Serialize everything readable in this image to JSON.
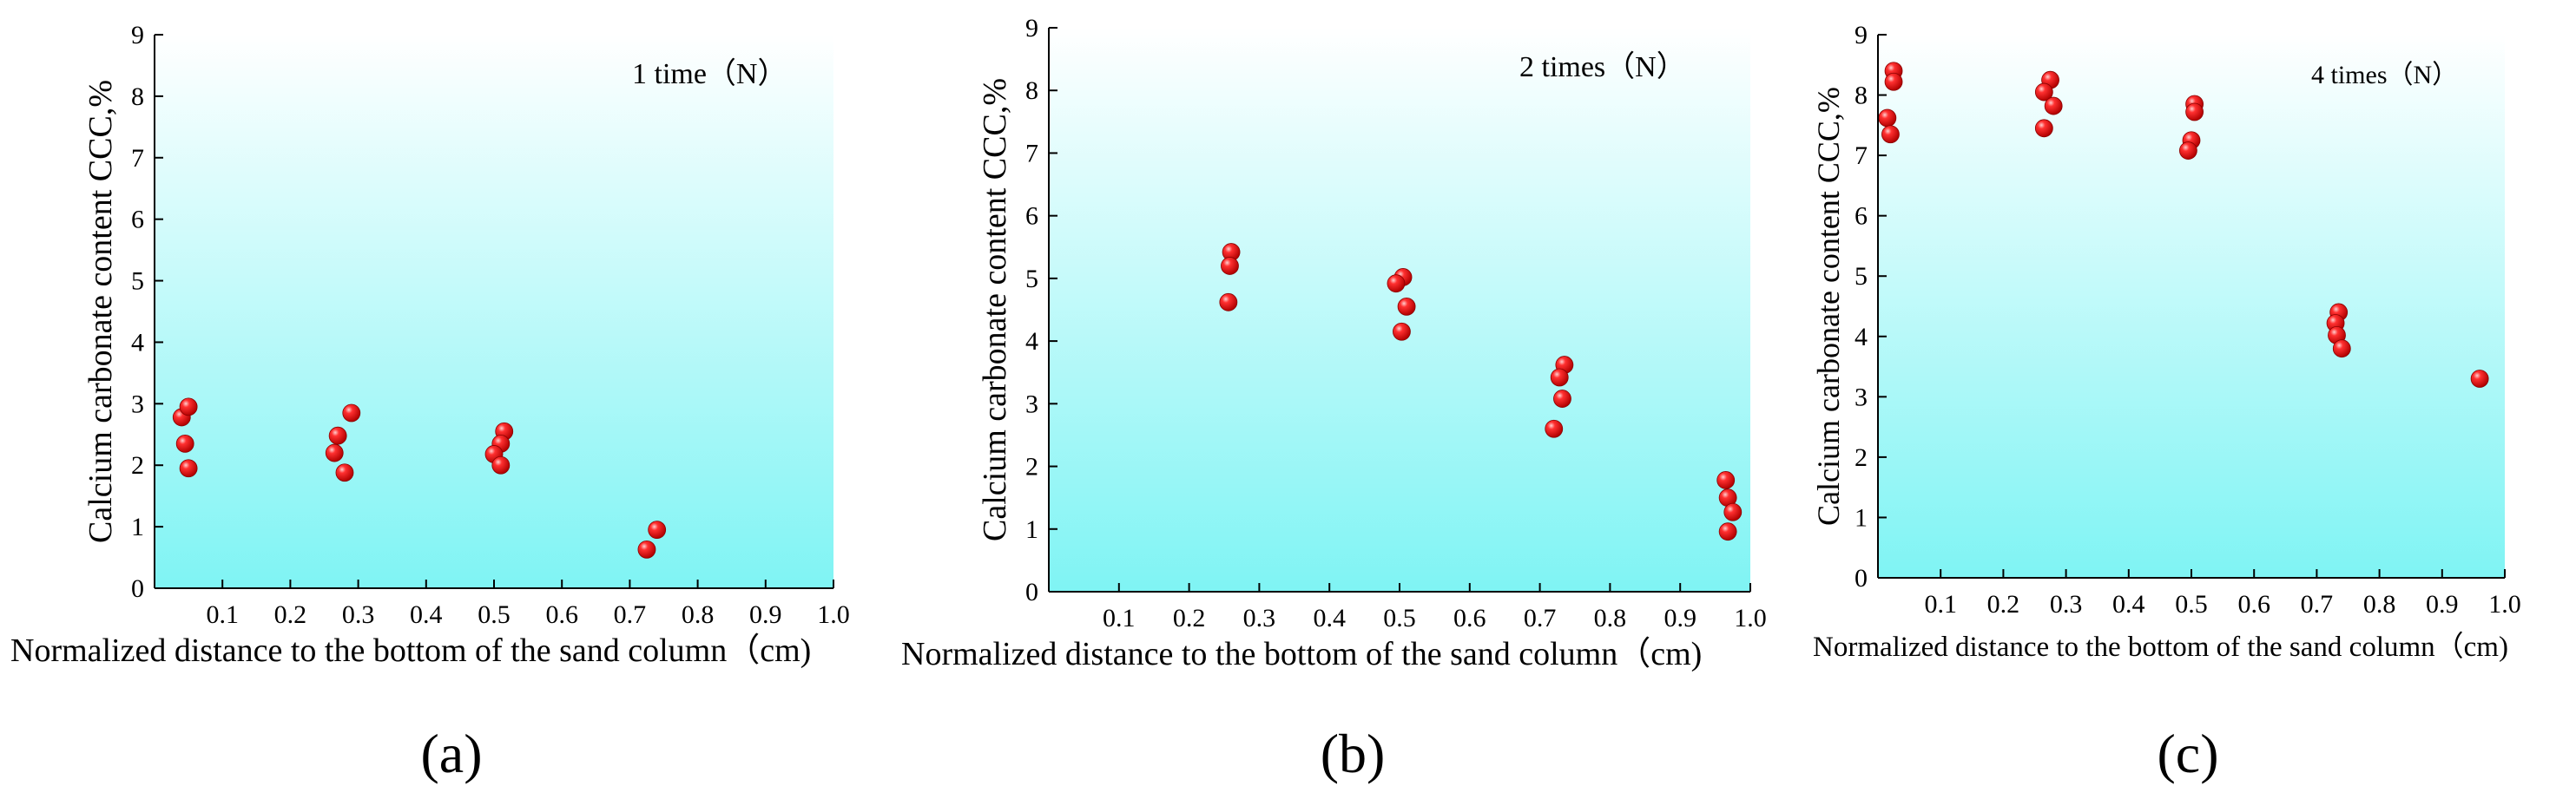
{
  "figure": {
    "captions": [
      "(a)",
      "(b)",
      "(c)"
    ]
  },
  "chart_data": [
    {
      "type": "scatter",
      "title": "1 time（N）",
      "xlabel": "Normalized distance to the bottom of the sand column（cm)",
      "ylabel": "Calcium carbonate content CCC,%",
      "xlim": [
        0,
        1.0
      ],
      "ylim": [
        0,
        9
      ],
      "xticks": [
        "0.1",
        "0.2",
        "0.3",
        "0.4",
        "0.5",
        "0.6",
        "0.7",
        "0.8",
        "0.9",
        "1.0"
      ],
      "yticks": [
        "0",
        "1",
        "2",
        "3",
        "4",
        "5",
        "6",
        "7",
        "8",
        "9"
      ],
      "points": [
        {
          "x": 0.04,
          "y": 2.78
        },
        {
          "x": 0.05,
          "y": 2.95
        },
        {
          "x": 0.045,
          "y": 2.35
        },
        {
          "x": 0.05,
          "y": 1.95
        },
        {
          "x": 0.27,
          "y": 2.48
        },
        {
          "x": 0.29,
          "y": 2.85
        },
        {
          "x": 0.265,
          "y": 2.2
        },
        {
          "x": 0.28,
          "y": 1.88
        },
        {
          "x": 0.515,
          "y": 2.55
        },
        {
          "x": 0.51,
          "y": 2.35
        },
        {
          "x": 0.5,
          "y": 2.18
        },
        {
          "x": 0.51,
          "y": 2.0
        },
        {
          "x": 0.74,
          "y": 0.95
        },
        {
          "x": 0.725,
          "y": 0.63
        }
      ]
    },
    {
      "type": "scatter",
      "title": "2 times（N）",
      "xlabel": "Normalized distance to the bottom of the sand column（cm)",
      "ylabel": "Calcium carbonate content CCC,%",
      "xlim": [
        0,
        1.0
      ],
      "ylim": [
        0,
        9
      ],
      "xticks": [
        "0.1",
        "0.2",
        "0.3",
        "0.4",
        "0.5",
        "0.6",
        "0.7",
        "0.8",
        "0.9",
        "1.0"
      ],
      "yticks": [
        "0",
        "1",
        "2",
        "3",
        "4",
        "5",
        "6",
        "7",
        "8",
        "9"
      ],
      "points": [
        {
          "x": 0.26,
          "y": 5.42
        },
        {
          "x": 0.258,
          "y": 5.2
        },
        {
          "x": 0.256,
          "y": 4.62
        },
        {
          "x": 0.505,
          "y": 5.02
        },
        {
          "x": 0.495,
          "y": 4.92
        },
        {
          "x": 0.51,
          "y": 4.55
        },
        {
          "x": 0.503,
          "y": 4.15
        },
        {
          "x": 0.735,
          "y": 3.62
        },
        {
          "x": 0.728,
          "y": 3.42
        },
        {
          "x": 0.732,
          "y": 3.08
        },
        {
          "x": 0.72,
          "y": 2.6
        },
        {
          "x": 0.965,
          "y": 1.78
        },
        {
          "x": 0.968,
          "y": 1.5
        },
        {
          "x": 0.975,
          "y": 1.27
        },
        {
          "x": 0.968,
          "y": 0.96
        }
      ]
    },
    {
      "type": "scatter",
      "title": "4 times（N）",
      "xlabel": "Normalized distance to the bottom of the sand column（cm)",
      "ylabel": "Calcium carbonate content CCC,%",
      "xlim": [
        0,
        1.0
      ],
      "ylim": [
        0,
        9
      ],
      "xticks": [
        "0.1",
        "0.2",
        "0.3",
        "0.4",
        "0.5",
        "0.6",
        "0.7",
        "0.8",
        "0.9",
        "1.0"
      ],
      "yticks": [
        "0",
        "1",
        "2",
        "3",
        "4",
        "5",
        "6",
        "7",
        "8",
        "9"
      ],
      "points": [
        {
          "x": 0.025,
          "y": 8.4
        },
        {
          "x": 0.025,
          "y": 8.22
        },
        {
          "x": 0.015,
          "y": 7.62
        },
        {
          "x": 0.02,
          "y": 7.35
        },
        {
          "x": 0.275,
          "y": 8.25
        },
        {
          "x": 0.265,
          "y": 8.05
        },
        {
          "x": 0.28,
          "y": 7.82
        },
        {
          "x": 0.265,
          "y": 7.45
        },
        {
          "x": 0.505,
          "y": 7.85
        },
        {
          "x": 0.505,
          "y": 7.72
        },
        {
          "x": 0.5,
          "y": 7.25
        },
        {
          "x": 0.495,
          "y": 7.08
        },
        {
          "x": 0.735,
          "y": 4.4
        },
        {
          "x": 0.73,
          "y": 4.22
        },
        {
          "x": 0.732,
          "y": 4.02
        },
        {
          "x": 0.74,
          "y": 3.8
        },
        {
          "x": 0.96,
          "y": 3.3
        }
      ]
    }
  ]
}
